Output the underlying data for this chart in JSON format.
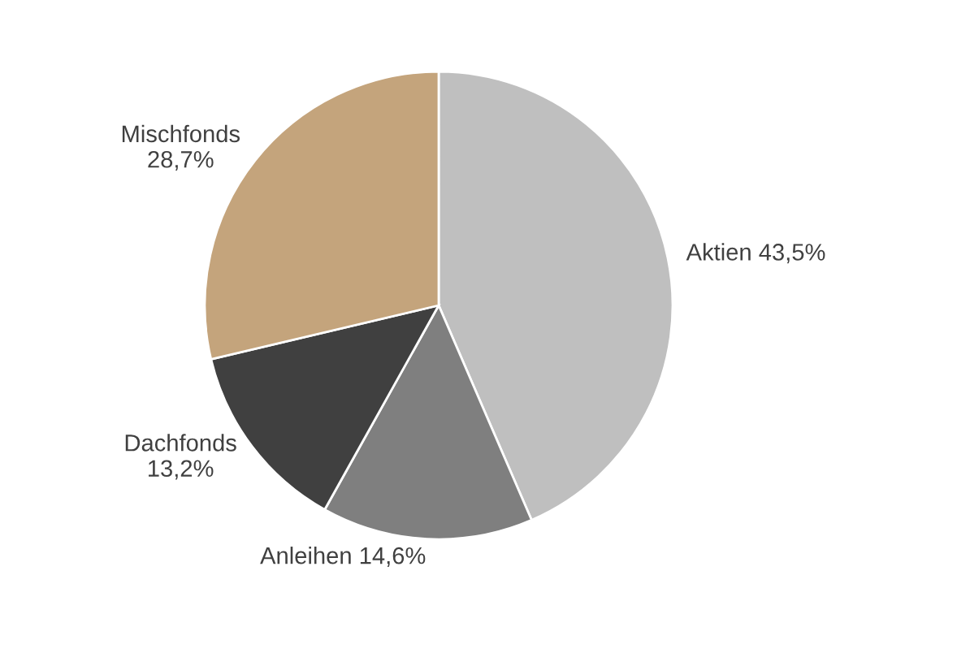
{
  "chart_data": {
    "type": "pie",
    "categories": [
      "Aktien",
      "Anleihen",
      "Dachfonds",
      "Mischfonds"
    ],
    "values": [
      43.5,
      14.6,
      13.2,
      28.7
    ],
    "value_labels": [
      "43,5%",
      "14,6%",
      "13,2%",
      "28,7%"
    ],
    "colors": [
      "#bfbfbf",
      "#7f7f7f",
      "#404040",
      "#c4a47c"
    ],
    "legend": false
  }
}
